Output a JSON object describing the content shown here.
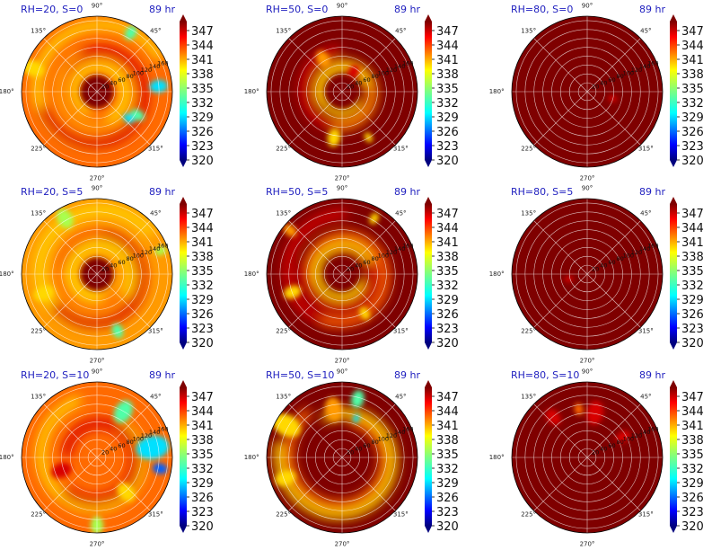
{
  "figure": {
    "panels": [
      {
        "title": "RH=20, S=0",
        "time": "89 hr"
      },
      {
        "title": "RH=50, S=0",
        "time": "89 hr"
      },
      {
        "title": "RH=80, S=0",
        "time": "89 hr"
      },
      {
        "title": "RH=20, S=5",
        "time": "89 hr"
      },
      {
        "title": "RH=50, S=5",
        "time": "89 hr"
      },
      {
        "title": "RH=80, S=5",
        "time": "89 hr"
      },
      {
        "title": "RH=20, S=10",
        "time": "89 hr"
      },
      {
        "title": "RH=50, S=10",
        "time": "89 hr"
      },
      {
        "title": "RH=80, S=10",
        "time": "89 hr"
      }
    ],
    "angle_labels": [
      "90°",
      "45°",
      "0°",
      "315°",
      "270°",
      "225°",
      "180°",
      "135°"
    ],
    "radial_labels": [
      "20",
      "40",
      "60",
      "80",
      "100",
      "120",
      "140",
      "160"
    ],
    "colorbar_ticks": [
      "347",
      "344",
      "341",
      "338",
      "335",
      "332",
      "329",
      "326",
      "323",
      "320"
    ],
    "colors": {
      "title": "#1f1fbf",
      "colormap": [
        "#00007f",
        "#0000ff",
        "#007fff",
        "#00ffff",
        "#7fff7f",
        "#ffff00",
        "#ff7f00",
        "#ff0000",
        "#7f0000"
      ]
    }
  },
  "chart_data": [
    {
      "type": "heatmap",
      "projection": "polar",
      "title": "RH=20, S=0",
      "annotation": "89 hr",
      "rlim": [
        0,
        170
      ],
      "rticks": [
        20,
        40,
        60,
        80,
        100,
        120,
        140,
        160
      ],
      "theta_ticks_deg": [
        0,
        45,
        90,
        135,
        180,
        225,
        270,
        315
      ],
      "colorbar_range": [
        320,
        347
      ],
      "colorbar_ticks": [
        347,
        344,
        341,
        338,
        335,
        332,
        329,
        326,
        323,
        320
      ],
      "grid": true,
      "pattern": "spiral bands mostly 338-347, dark-red eye core, cyan pockets near 0°-330° at large radius"
    },
    {
      "type": "heatmap",
      "projection": "polar",
      "title": "RH=50, S=0",
      "annotation": "89 hr",
      "rlim": [
        0,
        170
      ],
      "rticks": [
        20,
        40,
        60,
        80,
        100,
        120,
        140,
        160
      ],
      "theta_ticks_deg": [
        0,
        45,
        90,
        135,
        180,
        225,
        270,
        315
      ],
      "colorbar_range": [
        320,
        347
      ],
      "colorbar_ticks": [
        347,
        344,
        341,
        338,
        335,
        332,
        329,
        326,
        323,
        320
      ],
      "grid": true,
      "pattern": "mostly 347 (dark red) with orange-yellow spiral bands in inner half"
    },
    {
      "type": "heatmap",
      "projection": "polar",
      "title": "RH=80, S=0",
      "annotation": "89 hr",
      "rlim": [
        0,
        170
      ],
      "rticks": [
        20,
        40,
        60,
        80,
        100,
        120,
        140,
        160
      ],
      "theta_ticks_deg": [
        0,
        45,
        90,
        135,
        180,
        225,
        270,
        315
      ],
      "colorbar_range": [
        320,
        347
      ],
      "colorbar_ticks": [
        347,
        344,
        341,
        338,
        335,
        332,
        329,
        326,
        323,
        320
      ],
      "grid": true,
      "pattern": "nearly uniform 347 with one small red streak near 340°"
    },
    {
      "type": "heatmap",
      "projection": "polar",
      "title": "RH=20, S=5",
      "annotation": "89 hr",
      "rlim": [
        0,
        170
      ],
      "rticks": [
        20,
        40,
        60,
        80,
        100,
        120,
        140,
        160
      ],
      "theta_ticks_deg": [
        0,
        45,
        90,
        135,
        180,
        225,
        270,
        315
      ],
      "colorbar_range": [
        320,
        347
      ],
      "colorbar_ticks": [
        347,
        344,
        341,
        338,
        335,
        332,
        329,
        326,
        323,
        320
      ],
      "grid": true,
      "pattern": "dark-red eye, orange-yellow mix, greenish patches at large radius"
    },
    {
      "type": "heatmap",
      "projection": "polar",
      "title": "RH=50, S=5",
      "annotation": "89 hr",
      "rlim": [
        0,
        170
      ],
      "rticks": [
        20,
        40,
        60,
        80,
        100,
        120,
        140,
        160
      ],
      "theta_ticks_deg": [
        0,
        45,
        90,
        135,
        180,
        225,
        270,
        315
      ],
      "colorbar_range": [
        320,
        347
      ],
      "colorbar_ticks": [
        347,
        344,
        341,
        338,
        335,
        332,
        329,
        326,
        323,
        320
      ],
      "grid": true,
      "pattern": "dark-red dominated with bright red/yellow spiral arms and scattered yellow cells"
    },
    {
      "type": "heatmap",
      "projection": "polar",
      "title": "RH=80, S=5",
      "annotation": "89 hr",
      "rlim": [
        0,
        170
      ],
      "rticks": [
        20,
        40,
        60,
        80,
        100,
        120,
        140,
        160
      ],
      "theta_ticks_deg": [
        0,
        45,
        90,
        135,
        180,
        225,
        270,
        315
      ],
      "colorbar_range": [
        320,
        347
      ],
      "colorbar_ticks": [
        347,
        344,
        341,
        338,
        335,
        332,
        329,
        326,
        323,
        320
      ],
      "grid": true,
      "pattern": "nearly uniform 347 with one small red streak near 190°"
    },
    {
      "type": "heatmap",
      "projection": "polar",
      "title": "RH=20, S=10",
      "annotation": "89 hr",
      "rlim": [
        0,
        170
      ],
      "rticks": [
        20,
        40,
        60,
        80,
        100,
        120,
        140,
        160
      ],
      "theta_ticks_deg": [
        0,
        45,
        90,
        135,
        180,
        225,
        270,
        315
      ],
      "colorbar_range": [
        320,
        347
      ],
      "colorbar_ticks": [
        347,
        344,
        341,
        338,
        335,
        332,
        329,
        326,
        323,
        320
      ],
      "grid": true,
      "pattern": "no distinct eye; red-orange on west side, cyan-blue on east side near 0°"
    },
    {
      "type": "heatmap",
      "projection": "polar",
      "title": "RH=50, S=10",
      "annotation": "89 hr",
      "rlim": [
        0,
        170
      ],
      "rticks": [
        20,
        40,
        60,
        80,
        100,
        120,
        140,
        160
      ],
      "theta_ticks_deg": [
        0,
        45,
        90,
        135,
        180,
        225,
        270,
        315
      ],
      "colorbar_range": [
        320,
        347
      ],
      "colorbar_ticks": [
        347,
        344,
        341,
        338,
        335,
        332,
        329,
        326,
        323,
        320
      ],
      "grid": true,
      "pattern": "dark red south-east quadrant, orange-yellow and cyan in north/west"
    },
    {
      "type": "heatmap",
      "projection": "polar",
      "title": "RH=80, S=10",
      "annotation": "89 hr",
      "rlim": [
        0,
        170
      ],
      "rticks": [
        20,
        40,
        60,
        80,
        100,
        120,
        140,
        160
      ],
      "theta_ticks_deg": [
        0,
        45,
        90,
        135,
        180,
        225,
        270,
        315
      ],
      "colorbar_range": [
        320,
        347
      ],
      "colorbar_ticks": [
        347,
        344,
        341,
        338,
        335,
        332,
        329,
        326,
        323,
        320
      ],
      "grid": true,
      "pattern": "mostly dark red with red/orange patches in northern half"
    }
  ]
}
